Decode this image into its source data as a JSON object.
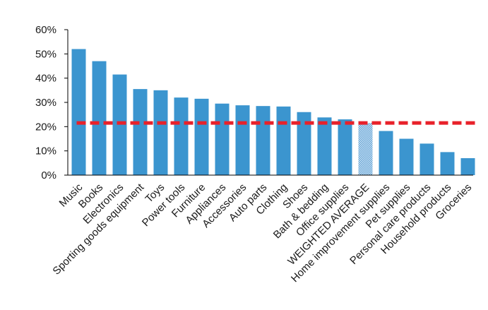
{
  "chart_data": {
    "type": "bar",
    "categories": [
      "Music",
      "Books",
      "Electronics",
      "Sporting goods equipment",
      "Toys",
      "Power tools",
      "Furniture",
      "Appliances",
      "Accessories",
      "Auto parts",
      "Clothing",
      "Shoes",
      "Bath & bedding",
      "Office supplies",
      "WEIGHTED AVERAGE",
      "Home improvement supplies",
      "Pet supplies",
      "Personal care products",
      "Household products",
      "Groceries"
    ],
    "values": [
      52,
      47,
      41.5,
      35.5,
      35,
      32,
      31.5,
      29.5,
      28.8,
      28.5,
      28.3,
      26,
      23.8,
      23,
      21.5,
      18.2,
      15,
      13,
      9.5,
      7
    ],
    "highlight_category": "WEIGHTED AVERAGE",
    "reference_line": {
      "value": 21.5,
      "style": "dashed",
      "color": "#e8212a"
    },
    "y_ticks": [
      "0%",
      "10%",
      "20%",
      "30%",
      "40%",
      "50%",
      "60%"
    ],
    "ylim": [
      0,
      60
    ],
    "grid": false,
    "title": "",
    "xlabel": "",
    "ylabel": "",
    "colors": {
      "bar": "#3b95cf",
      "highlight": "#bcd8ee",
      "axis": "#000000",
      "reference": "#e8212a"
    }
  }
}
